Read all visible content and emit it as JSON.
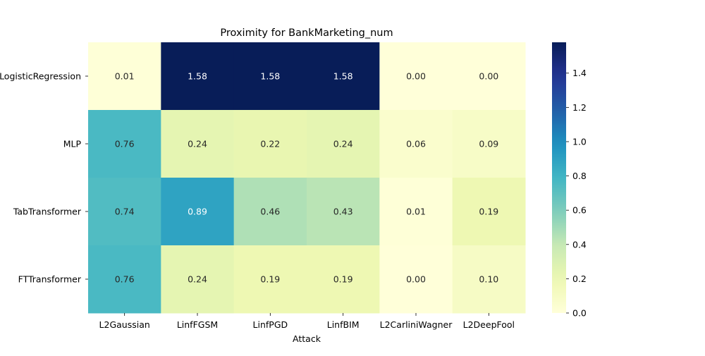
{
  "chart_data": {
    "type": "heatmap",
    "title": "Proximity for BankMarketing_num",
    "xlabel": "Attack",
    "ylabel": "",
    "x_categories": [
      "L2Gaussian",
      "LinfFGSM",
      "LinfPGD",
      "LinfBIM",
      "L2CarliniWagner",
      "L2DeepFool"
    ],
    "y_categories": [
      "LogisticRegression",
      "MLP",
      "TabTransformer",
      "FTTransformer"
    ],
    "values": [
      [
        0.01,
        1.58,
        1.58,
        1.58,
        0.0,
        0.0
      ],
      [
        0.76,
        0.24,
        0.22,
        0.24,
        0.06,
        0.09
      ],
      [
        0.74,
        0.89,
        0.46,
        0.43,
        0.01,
        0.19
      ],
      [
        0.76,
        0.24,
        0.19,
        0.19,
        0.0,
        0.1
      ]
    ],
    "value_labels": [
      [
        "0.01",
        "1.58",
        "1.58",
        "1.58",
        "0.00",
        "0.00"
      ],
      [
        "0.76",
        "0.24",
        "0.22",
        "0.24",
        "0.06",
        "0.09"
      ],
      [
        "0.74",
        "0.89",
        "0.46",
        "0.43",
        "0.01",
        "0.19"
      ],
      [
        "0.76",
        "0.24",
        "0.19",
        "0.19",
        "0.00",
        "0.10"
      ]
    ],
    "colormap": "YlGnBu",
    "colorbar": {
      "range": [
        0,
        1.58
      ],
      "ticks": [
        0.0,
        0.2,
        0.4,
        0.6,
        0.8,
        1.0,
        1.2,
        1.4
      ],
      "tick_labels": [
        "0.0",
        "0.2",
        "0.4",
        "0.6",
        "0.8",
        "1.0",
        "1.2",
        "1.4"
      ]
    },
    "grid": false
  }
}
